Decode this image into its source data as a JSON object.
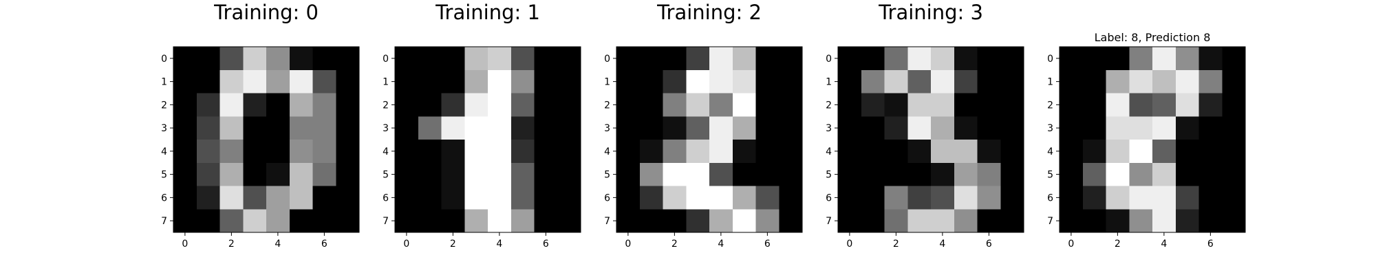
{
  "chart_data": [
    {
      "type": "heatmap",
      "title": "Training: 0",
      "colormap": "gray",
      "xticks": [
        "0",
        "2",
        "4",
        "6"
      ],
      "yticks": [
        "0",
        "1",
        "2",
        "3",
        "4",
        "5",
        "6",
        "7"
      ],
      "values": [
        [
          0,
          0,
          5,
          13,
          9,
          1,
          0,
          0
        ],
        [
          0,
          0,
          13,
          15,
          10,
          15,
          5,
          0
        ],
        [
          0,
          3,
          15,
          2,
          0,
          11,
          8,
          0
        ],
        [
          0,
          4,
          12,
          0,
          0,
          8,
          8,
          0
        ],
        [
          0,
          5,
          8,
          0,
          0,
          9,
          8,
          0
        ],
        [
          0,
          4,
          11,
          0,
          1,
          12,
          7,
          0
        ],
        [
          0,
          2,
          14,
          5,
          10,
          12,
          0,
          0
        ],
        [
          0,
          0,
          6,
          13,
          10,
          0,
          0,
          0
        ]
      ]
    },
    {
      "type": "heatmap",
      "title": "Training: 1",
      "colormap": "gray",
      "xticks": [
        "0",
        "2",
        "4",
        "6"
      ],
      "yticks": [
        "0",
        "1",
        "2",
        "3",
        "4",
        "5",
        "6",
        "7"
      ],
      "values": [
        [
          0,
          0,
          0,
          12,
          13,
          5,
          0,
          0
        ],
        [
          0,
          0,
          0,
          11,
          16,
          9,
          0,
          0
        ],
        [
          0,
          0,
          3,
          15,
          16,
          6,
          0,
          0
        ],
        [
          0,
          7,
          15,
          16,
          16,
          2,
          0,
          0
        ],
        [
          0,
          0,
          1,
          16,
          16,
          3,
          0,
          0
        ],
        [
          0,
          0,
          1,
          16,
          16,
          6,
          0,
          0
        ],
        [
          0,
          0,
          1,
          16,
          16,
          6,
          0,
          0
        ],
        [
          0,
          0,
          0,
          11,
          16,
          10,
          0,
          0
        ]
      ]
    },
    {
      "type": "heatmap",
      "title": "Training: 2",
      "colormap": "gray",
      "xticks": [
        "0",
        "2",
        "4",
        "6"
      ],
      "yticks": [
        "0",
        "1",
        "2",
        "3",
        "4",
        "5",
        "6",
        "7"
      ],
      "values": [
        [
          0,
          0,
          0,
          4,
          15,
          12,
          0,
          0
        ],
        [
          0,
          0,
          3,
          16,
          15,
          14,
          0,
          0
        ],
        [
          0,
          0,
          8,
          13,
          8,
          16,
          0,
          0
        ],
        [
          0,
          0,
          1,
          6,
          15,
          11,
          0,
          0
        ],
        [
          0,
          1,
          8,
          13,
          15,
          1,
          0,
          0
        ],
        [
          0,
          9,
          16,
          16,
          5,
          0,
          0,
          0
        ],
        [
          0,
          3,
          13,
          16,
          16,
          11,
          5,
          0
        ],
        [
          0,
          0,
          0,
          3,
          11,
          16,
          9,
          0
        ]
      ]
    },
    {
      "type": "heatmap",
      "title": "Training: 3",
      "colormap": "gray",
      "xticks": [
        "0",
        "2",
        "4",
        "6"
      ],
      "yticks": [
        "0",
        "1",
        "2",
        "3",
        "4",
        "5",
        "6",
        "7"
      ],
      "values": [
        [
          0,
          0,
          7,
          15,
          13,
          1,
          0,
          0
        ],
        [
          0,
          8,
          13,
          6,
          15,
          4,
          0,
          0
        ],
        [
          0,
          2,
          1,
          13,
          13,
          0,
          0,
          0
        ],
        [
          0,
          0,
          2,
          15,
          11,
          1,
          0,
          0
        ],
        [
          0,
          0,
          0,
          1,
          12,
          12,
          1,
          0
        ],
        [
          0,
          0,
          0,
          0,
          1,
          10,
          8,
          0
        ],
        [
          0,
          0,
          8,
          4,
          5,
          14,
          9,
          0
        ],
        [
          0,
          0,
          7,
          13,
          13,
          9,
          0,
          0
        ]
      ]
    },
    {
      "type": "heatmap",
      "title": "Label: 8, Prediction 8",
      "colormap": "gray",
      "xticks": [
        "0",
        "2",
        "4",
        "6"
      ],
      "yticks": [
        "0",
        "1",
        "2",
        "3",
        "4",
        "5",
        "6",
        "7"
      ],
      "values": [
        [
          0,
          0,
          0,
          8,
          15,
          9,
          1,
          0
        ],
        [
          0,
          0,
          11,
          14,
          12,
          15,
          8,
          0
        ],
        [
          0,
          0,
          15,
          5,
          6,
          14,
          2,
          0
        ],
        [
          0,
          0,
          14,
          14,
          15,
          1,
          0,
          0
        ],
        [
          0,
          1,
          13,
          16,
          6,
          0,
          0,
          0
        ],
        [
          0,
          6,
          16,
          9,
          13,
          0,
          0,
          0
        ],
        [
          0,
          2,
          13,
          15,
          15,
          4,
          0,
          0
        ],
        [
          0,
          0,
          1,
          9,
          15,
          2,
          0,
          0
        ]
      ]
    }
  ]
}
